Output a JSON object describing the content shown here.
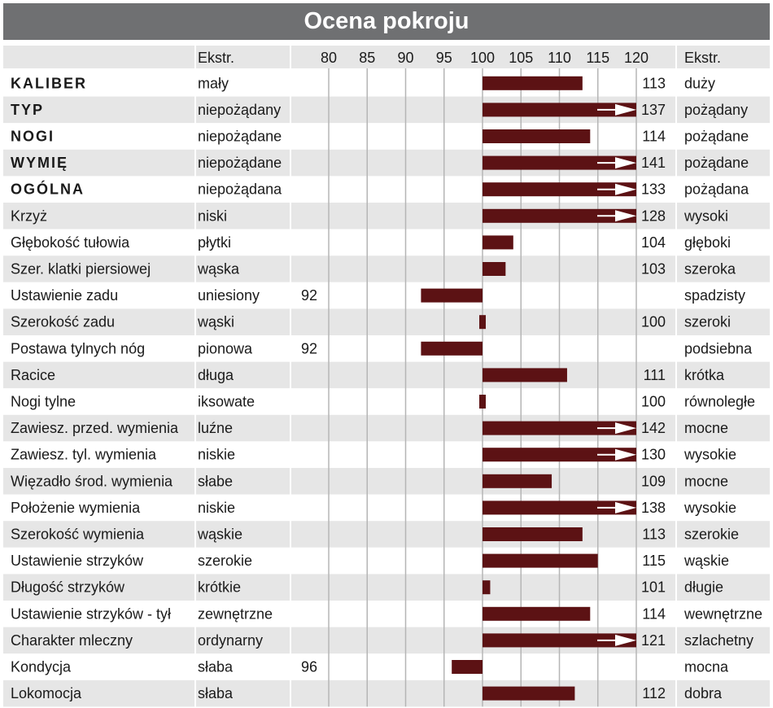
{
  "title": "Ocena pokroju",
  "chart_data": {
    "type": "bar",
    "title": "Ocena pokroju",
    "left_header": "Ekstr.",
    "right_header": "Ekstr.",
    "ticks": [
      80,
      85,
      90,
      95,
      100,
      105,
      110,
      115,
      120
    ],
    "xlim": [
      80,
      120
    ],
    "baseline": 100,
    "grid": true,
    "bar_color": "#5c1214",
    "row_color_odd": "#e6e6e6",
    "row_color_even": "#ffffff",
    "rows": [
      {
        "name": "KALIBER",
        "bold": true,
        "left": "mały",
        "value": 113,
        "right": "duży"
      },
      {
        "name": "TYP",
        "bold": true,
        "left": "niepożądany",
        "value": 137,
        "right": "pożądany"
      },
      {
        "name": "NOGI",
        "bold": true,
        "left": "niepożądane",
        "value": 114,
        "right": "pożądane"
      },
      {
        "name": "WYMIĘ",
        "bold": true,
        "left": "niepożądane",
        "value": 141,
        "right": "pożądane"
      },
      {
        "name": "OGÓLNA",
        "bold": true,
        "left": "niepożądana",
        "value": 133,
        "right": "pożądana"
      },
      {
        "name": "Krzyż",
        "bold": false,
        "left": "niski",
        "value": 128,
        "right": "wysoki"
      },
      {
        "name": "Głębokość tułowia",
        "bold": false,
        "left": "płytki",
        "value": 104,
        "right": "głęboki"
      },
      {
        "name": "Szer. klatki piersiowej",
        "bold": false,
        "left": "wąska",
        "value": 103,
        "right": "szeroka"
      },
      {
        "name": "Ustawienie zadu",
        "bold": false,
        "left": "uniesiony",
        "value": 92,
        "right": "spadzisty"
      },
      {
        "name": "Szerokość zadu",
        "bold": false,
        "left": "wąski",
        "value": 100,
        "right": "szeroki"
      },
      {
        "name": "Postawa tylnych nóg",
        "bold": false,
        "left": "pionowa",
        "value": 92,
        "right": "podsiebna"
      },
      {
        "name": "Racice",
        "bold": false,
        "left": "długa",
        "value": 111,
        "right": "krótka"
      },
      {
        "name": "Nogi tylne",
        "bold": false,
        "left": "iksowate",
        "value": 100,
        "right": "równoległe"
      },
      {
        "name": "Zawiesz. przed. wymienia",
        "bold": false,
        "left": "luźne",
        "value": 142,
        "right": "mocne"
      },
      {
        "name": "Zawiesz. tyl. wymienia",
        "bold": false,
        "left": "niskie",
        "value": 130,
        "right": "wysokie"
      },
      {
        "name": "Więzadło środ. wymienia",
        "bold": false,
        "left": "słabe",
        "value": 109,
        "right": "mocne"
      },
      {
        "name": "Położenie wymienia",
        "bold": false,
        "left": "niskie",
        "value": 138,
        "right": "wysokie"
      },
      {
        "name": "Szerokość wymienia",
        "bold": false,
        "left": "wąskie",
        "value": 113,
        "right": "szerokie"
      },
      {
        "name": "Ustawienie strzyków",
        "bold": false,
        "left": "szerokie",
        "value": 115,
        "right": "wąskie"
      },
      {
        "name": "Długość strzyków",
        "bold": false,
        "left": "krótkie",
        "value": 101,
        "right": "długie"
      },
      {
        "name": "Ustawienie strzyków - tył",
        "bold": false,
        "left": "zewnętrzne",
        "value": 114,
        "right": "wewnętrzne"
      },
      {
        "name": "Charakter mleczny",
        "bold": false,
        "left": "ordynarny",
        "value": 121,
        "right": "szlachetny"
      },
      {
        "name": "Kondycja",
        "bold": false,
        "left": "słaba",
        "value": 96,
        "right": "mocna"
      },
      {
        "name": "Lokomocja",
        "bold": false,
        "left": "słaba",
        "value": 112,
        "right": "dobra"
      }
    ]
  }
}
